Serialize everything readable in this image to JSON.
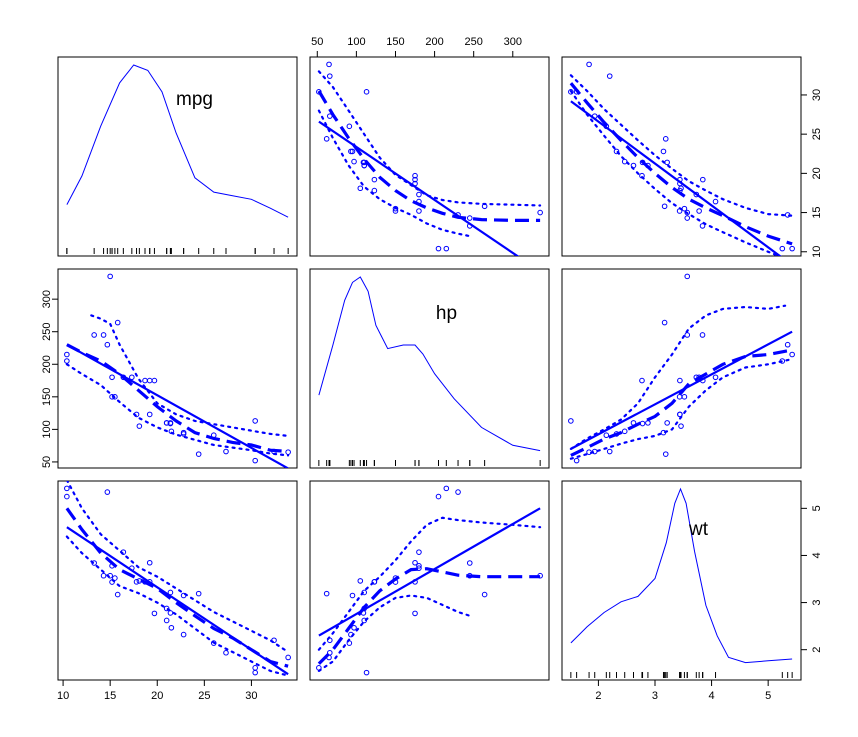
{
  "chart_data": {
    "type": "scatter-matrix",
    "title": "",
    "variables": [
      "mpg",
      "hp",
      "wt"
    ],
    "ranges": {
      "mpg": [
        10.4,
        33.9
      ],
      "hp": [
        52,
        335
      ],
      "wt": [
        1.513,
        5.424
      ]
    },
    "grid": false,
    "line_color": "#0000ff",
    "ticks": {
      "mpg_x": [
        "10",
        "15",
        "20",
        "25",
        "30"
      ],
      "mpg_y": [
        "10",
        "15",
        "20",
        "25",
        "30"
      ],
      "hp_x": [
        "50",
        "100",
        "150",
        "200",
        "250",
        "300"
      ],
      "hp_y": [
        "50",
        "100",
        "150",
        "200",
        "250",
        "300"
      ],
      "wt_x": [
        "2",
        "3",
        "4",
        "5"
      ],
      "wt_y": [
        "2",
        "3",
        "4",
        "5"
      ]
    },
    "observations": {
      "mpg": [
        21.0,
        21.0,
        22.8,
        21.4,
        18.7,
        18.1,
        14.3,
        24.4,
        22.8,
        19.2,
        17.8,
        16.4,
        17.3,
        15.2,
        10.4,
        10.4,
        14.7,
        32.4,
        30.4,
        33.9,
        21.5,
        15.5,
        15.2,
        13.3,
        19.2,
        27.3,
        26.0,
        30.4,
        15.8,
        19.7,
        15.0,
        21.4
      ],
      "hp": [
        110,
        110,
        93,
        110,
        175,
        105,
        245,
        62,
        95,
        123,
        123,
        180,
        180,
        180,
        205,
        215,
        230,
        66,
        52,
        65,
        97,
        150,
        150,
        245,
        175,
        66,
        91,
        113,
        264,
        175,
        335,
        109
      ],
      "wt": [
        2.62,
        2.875,
        2.32,
        3.215,
        3.44,
        3.46,
        3.57,
        3.19,
        3.15,
        3.44,
        3.44,
        4.07,
        3.73,
        3.78,
        5.25,
        5.424,
        5.345,
        2.2,
        1.615,
        1.835,
        2.465,
        3.52,
        3.435,
        3.84,
        3.845,
        1.935,
        2.14,
        1.513,
        3.17,
        2.77,
        3.57,
        2.78
      ]
    },
    "density": {
      "mpg": {
        "x": [
          10.4,
          12,
          14,
          16,
          17.5,
          19,
          20.5,
          22,
          24,
          26,
          28,
          30,
          32,
          33.9
        ],
        "y": [
          0.22,
          0.38,
          0.66,
          0.9,
          1.0,
          0.97,
          0.85,
          0.62,
          0.37,
          0.29,
          0.27,
          0.25,
          0.2,
          0.15
        ]
      },
      "hp": {
        "x": [
          52,
          70,
          85,
          95,
          105,
          115,
          125,
          140,
          160,
          175,
          185,
          200,
          225,
          260,
          300,
          335
        ],
        "y": [
          0.34,
          0.62,
          0.87,
          0.97,
          1.0,
          0.92,
          0.73,
          0.6,
          0.62,
          0.62,
          0.57,
          0.46,
          0.32,
          0.16,
          0.06,
          0.03
        ]
      },
      "wt": {
        "x": [
          1.513,
          1.8,
          2.1,
          2.4,
          2.7,
          3.0,
          3.2,
          3.35,
          3.45,
          3.55,
          3.7,
          3.9,
          4.1,
          4.3,
          4.6,
          5.0,
          5.424
        ],
        "y": [
          0.14,
          0.23,
          0.31,
          0.37,
          0.4,
          0.5,
          0.7,
          0.92,
          1.0,
          0.92,
          0.65,
          0.35,
          0.18,
          0.06,
          0.03,
          0.04,
          0.05
        ]
      }
    },
    "panels": {
      "hp_vs_mpg": {
        "fit": {
          "x": [
            10.4,
            33.9
          ],
          "y": [
            230,
            40
          ]
        },
        "smooth": {
          "x": [
            10.4,
            12,
            14,
            16,
            18,
            20,
            22,
            24,
            26,
            28,
            30,
            32,
            33.9
          ],
          "y": [
            230,
            218,
            205,
            185,
            160,
            135,
            113,
            95,
            86,
            80,
            76,
            68,
            66
          ]
        },
        "upper": {
          "x": [
            13,
            14,
            15,
            16,
            18,
            20,
            22,
            24,
            26,
            28,
            30,
            32,
            33.9
          ],
          "y": [
            275,
            270,
            262,
            230,
            178,
            140,
            123,
            113,
            108,
            103,
            98,
            93,
            90
          ]
        },
        "lower": {
          "x": [
            10.4,
            12,
            14,
            16,
            18,
            20,
            22,
            24,
            26,
            28,
            30,
            32,
            33.9
          ],
          "y": [
            200,
            185,
            168,
            142,
            118,
            103,
            92,
            84,
            76,
            72,
            68,
            63,
            60
          ]
        }
      },
      "wt_vs_mpg": {
        "fit": {
          "x": [
            10.4,
            33.9
          ],
          "y": [
            4.6,
            1.48
          ]
        },
        "smooth": {
          "x": [
            10.4,
            12,
            14,
            16,
            18,
            20,
            22,
            24,
            26,
            28,
            30,
            32,
            33.9
          ],
          "y": [
            5.0,
            4.55,
            4.05,
            3.7,
            3.5,
            3.3,
            3.0,
            2.72,
            2.45,
            2.25,
            2.0,
            1.75,
            1.65
          ]
        },
        "upper": {
          "x": [
            10.4,
            12,
            14,
            16,
            18,
            20,
            22,
            24,
            26,
            28,
            30,
            32,
            33.9
          ],
          "y": [
            5.6,
            5.0,
            4.45,
            4.1,
            3.75,
            3.55,
            3.3,
            3.05,
            2.8,
            2.6,
            2.4,
            2.2,
            1.95
          ]
        },
        "lower": {
          "x": [
            10.4,
            12,
            14,
            16,
            18,
            20,
            22,
            24,
            26,
            28,
            30,
            32,
            33.9
          ],
          "y": [
            4.4,
            4.05,
            3.7,
            3.35,
            3.2,
            3.0,
            2.75,
            2.45,
            2.15,
            1.95,
            1.75,
            1.55,
            1.45
          ]
        }
      },
      "mpg_vs_hp": {
        "fit": {
          "x": [
            52,
            335
          ],
          "y": [
            26.6,
            7.5
          ]
        },
        "smooth": {
          "x": [
            52,
            70,
            90,
            110,
            130,
            150,
            170,
            190,
            210,
            230,
            260,
            300,
            335
          ],
          "y": [
            30.5,
            27.5,
            24.5,
            21.8,
            19.5,
            17.8,
            16.5,
            15.6,
            14.9,
            14.4,
            14.1,
            14.0,
            14.0
          ]
        },
        "upper": {
          "x": [
            52,
            70,
            90,
            110,
            130,
            150,
            170,
            190,
            210,
            230,
            260,
            300,
            335
          ],
          "y": [
            33.0,
            31.0,
            28.0,
            25.0,
            22.0,
            19.8,
            18.5,
            17.2,
            16.6,
            16.3,
            16.1,
            16.0,
            15.9
          ]
        },
        "lower": {
          "x": [
            52,
            70,
            90,
            110,
            130,
            150,
            170,
            190,
            210,
            230,
            245
          ],
          "y": [
            28.0,
            24.5,
            21.0,
            18.3,
            16.7,
            15.6,
            14.7,
            13.6,
            12.8,
            12.3,
            12.0
          ]
        }
      },
      "wt_vs_hp": {
        "fit": {
          "x": [
            52,
            335
          ],
          "y": [
            2.3,
            5.0
          ]
        },
        "smooth": {
          "x": [
            52,
            70,
            90,
            110,
            130,
            150,
            170,
            190,
            210,
            230,
            260,
            300,
            335
          ],
          "y": [
            1.7,
            2.0,
            2.45,
            2.9,
            3.25,
            3.5,
            3.7,
            3.72,
            3.65,
            3.58,
            3.55,
            3.55,
            3.55
          ]
        },
        "upper": {
          "x": [
            52,
            70,
            90,
            110,
            130,
            150,
            170,
            190,
            210,
            230,
            260,
            300,
            335
          ],
          "y": [
            2.0,
            2.35,
            2.8,
            3.25,
            3.55,
            3.9,
            4.3,
            4.65,
            4.8,
            4.75,
            4.7,
            4.65,
            4.6
          ]
        },
        "lower": {
          "x": [
            52,
            70,
            90,
            110,
            130,
            150,
            170,
            190,
            210,
            230,
            245
          ],
          "y": [
            1.55,
            1.75,
            2.2,
            2.6,
            2.9,
            3.1,
            3.15,
            3.1,
            2.95,
            2.8,
            2.72
          ]
        }
      },
      "mpg_vs_wt": {
        "fit": {
          "x": [
            1.513,
            5.424
          ],
          "y": [
            29.2,
            8.3
          ]
        },
        "smooth": {
          "x": [
            1.513,
            1.8,
            2.1,
            2.4,
            2.7,
            3.0,
            3.3,
            3.6,
            3.9,
            4.2,
            4.6,
            5.0,
            5.424
          ],
          "y": [
            31.5,
            29.0,
            26.5,
            24.2,
            22.0,
            20.0,
            18.2,
            16.7,
            15.6,
            14.6,
            13.2,
            12.0,
            11.0
          ]
        },
        "upper": {
          "x": [
            1.513,
            1.8,
            2.1,
            2.4,
            2.7,
            3.0,
            3.3,
            3.6,
            3.9,
            4.2,
            4.6,
            5.0,
            5.424
          ],
          "y": [
            32.5,
            30.5,
            28.2,
            26.2,
            24.2,
            22.3,
            20.6,
            19.0,
            17.8,
            16.7,
            15.6,
            14.8,
            14.6
          ]
        },
        "lower": {
          "x": [
            1.513,
            1.8,
            2.1,
            2.4,
            2.7,
            3.0,
            3.3,
            3.6,
            3.9,
            4.2,
            4.6,
            5.0,
            5.424
          ],
          "y": [
            30.5,
            27.5,
            24.8,
            22.2,
            20.0,
            18.0,
            16.2,
            14.8,
            13.5,
            12.5,
            11.2,
            10.0,
            8.8
          ]
        }
      },
      "hp_vs_wt": {
        "fit": {
          "x": [
            1.513,
            5.424
          ],
          "y": [
            70,
            250
          ]
        },
        "smooth": {
          "x": [
            1.513,
            1.8,
            2.1,
            2.4,
            2.7,
            3.0,
            3.3,
            3.6,
            3.9,
            4.2,
            4.6,
            5.0,
            5.424
          ],
          "y": [
            60,
            72,
            85,
            95,
            108,
            120,
            140,
            170,
            185,
            200,
            212,
            215,
            222
          ]
        },
        "upper": {
          "x": [
            1.513,
            1.8,
            2.1,
            2.4,
            2.7,
            3.0,
            3.3,
            3.6,
            3.9,
            4.2,
            4.6,
            5.0,
            5.3
          ],
          "y": [
            70,
            86,
            100,
            115,
            140,
            180,
            215,
            255,
            275,
            285,
            288,
            285,
            290
          ]
        },
        "lower": {
          "x": [
            1.513,
            1.8,
            2.1,
            2.4,
            2.7,
            3.0,
            3.3,
            3.6,
            3.9,
            4.2,
            4.6,
            5.0,
            5.424
          ],
          "y": [
            55,
            62,
            70,
            78,
            85,
            90,
            100,
            135,
            160,
            180,
            195,
            200,
            208
          ]
        }
      }
    }
  }
}
